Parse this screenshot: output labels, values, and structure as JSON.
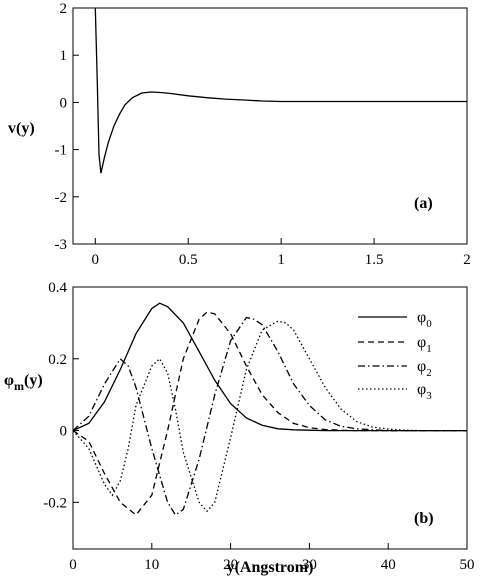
{
  "chart_data": [
    {
      "type": "line",
      "panel_label": "(a)",
      "xlabel": "",
      "ylabel": "v(y)",
      "xlim": [
        -0.12,
        2.0
      ],
      "ylim": [
        -3,
        2
      ],
      "xticks": [
        0,
        0.5,
        1,
        1.5,
        2
      ],
      "xtick_labels": [
        "0",
        "0.5",
        "1",
        "1.5",
        "2"
      ],
      "yticks": [
        -3,
        -2,
        -1,
        0,
        1,
        2
      ],
      "ytick_labels": [
        "-3",
        "-2",
        "-1",
        "0",
        "1",
        "2"
      ],
      "grid": false,
      "series": [
        {
          "style": "solid",
          "x": [
            0.0,
            0.01,
            0.02,
            0.03,
            0.05,
            0.07,
            0.1,
            0.13,
            0.16,
            0.2,
            0.25,
            0.3,
            0.35,
            0.4,
            0.5,
            0.6,
            0.7,
            0.8,
            0.9,
            1.0,
            1.2,
            1.5,
            1.8,
            2.0
          ],
          "y": [
            2.0,
            0.5,
            -1.1,
            -1.5,
            -1.15,
            -0.85,
            -0.5,
            -0.25,
            -0.05,
            0.1,
            0.2,
            0.22,
            0.21,
            0.19,
            0.14,
            0.1,
            0.07,
            0.05,
            0.03,
            0.02,
            0.02,
            0.02,
            0.02,
            0.02
          ]
        }
      ]
    },
    {
      "type": "line",
      "panel_label": "(b)",
      "xlabel": "y(Angstrom)",
      "ylabel_main": "φ",
      "ylabel_sub": "m",
      "ylabel_tail": "(y)",
      "xlim": [
        0,
        50
      ],
      "ylim": [
        -0.33,
        0.4
      ],
      "xticks": [
        0,
        10,
        20,
        30,
        40,
        50
      ],
      "xtick_labels": [
        "0",
        "10",
        "20",
        "30",
        "40",
        "50"
      ],
      "yticks": [
        -0.2,
        0,
        0.2,
        0.4
      ],
      "ytick_labels": [
        "-0.2",
        "0",
        "0.2",
        "0.4"
      ],
      "grid": false,
      "legend_placement": "top-right",
      "series": [
        {
          "name_main": "φ",
          "name_sub": "0",
          "style": "solid",
          "x": [
            0,
            2,
            4,
            6,
            8,
            10,
            11,
            12,
            14,
            16,
            18,
            20,
            22,
            24,
            26,
            28,
            30,
            32,
            34,
            40,
            50
          ],
          "y": [
            0,
            0.02,
            0.08,
            0.17,
            0.27,
            0.34,
            0.355,
            0.345,
            0.3,
            0.22,
            0.14,
            0.075,
            0.035,
            0.015,
            0.005,
            0.002,
            0.001,
            0,
            0,
            0,
            0
          ]
        },
        {
          "name_main": "φ",
          "name_sub": "1",
          "style": "dashed",
          "x": [
            0,
            2,
            4,
            6,
            8,
            10,
            12,
            14,
            16,
            17,
            18,
            20,
            22,
            24,
            26,
            28,
            30,
            32,
            34,
            36,
            40,
            50
          ],
          "y": [
            0,
            -0.03,
            -0.12,
            -0.2,
            -0.235,
            -0.18,
            0.0,
            0.2,
            0.31,
            0.33,
            0.325,
            0.27,
            0.18,
            0.1,
            0.05,
            0.02,
            0.008,
            0.003,
            0.001,
            0,
            0,
            0
          ]
        },
        {
          "name_main": "φ",
          "name_sub": "2",
          "style": "dashdot",
          "x": [
            0,
            2,
            4,
            6,
            7,
            8,
            10,
            12,
            13,
            14,
            16,
            18,
            20,
            22,
            23,
            24,
            26,
            28,
            30,
            32,
            34,
            36,
            38,
            40,
            50
          ],
          "y": [
            0,
            0.04,
            0.13,
            0.2,
            0.18,
            0.12,
            -0.05,
            -0.2,
            -0.235,
            -0.22,
            -0.08,
            0.1,
            0.25,
            0.315,
            0.31,
            0.295,
            0.22,
            0.13,
            0.07,
            0.03,
            0.012,
            0.005,
            0.002,
            0,
            0
          ]
        },
        {
          "name_main": "φ",
          "name_sub": "3",
          "style": "dotted",
          "x": [
            0,
            2,
            4,
            5,
            6,
            7,
            8,
            10,
            11,
            12,
            13,
            14,
            16,
            17,
            18,
            20,
            22,
            24,
            26,
            27,
            28,
            30,
            32,
            34,
            36,
            38,
            40,
            42,
            44,
            50
          ],
          "y": [
            0,
            -0.05,
            -0.15,
            -0.18,
            -0.14,
            -0.05,
            0.07,
            0.18,
            0.2,
            0.16,
            0.06,
            -0.06,
            -0.2,
            -0.225,
            -0.2,
            -0.02,
            0.17,
            0.28,
            0.305,
            0.3,
            0.28,
            0.2,
            0.12,
            0.06,
            0.025,
            0.01,
            0.004,
            0.001,
            0,
            0
          ]
        }
      ]
    }
  ]
}
